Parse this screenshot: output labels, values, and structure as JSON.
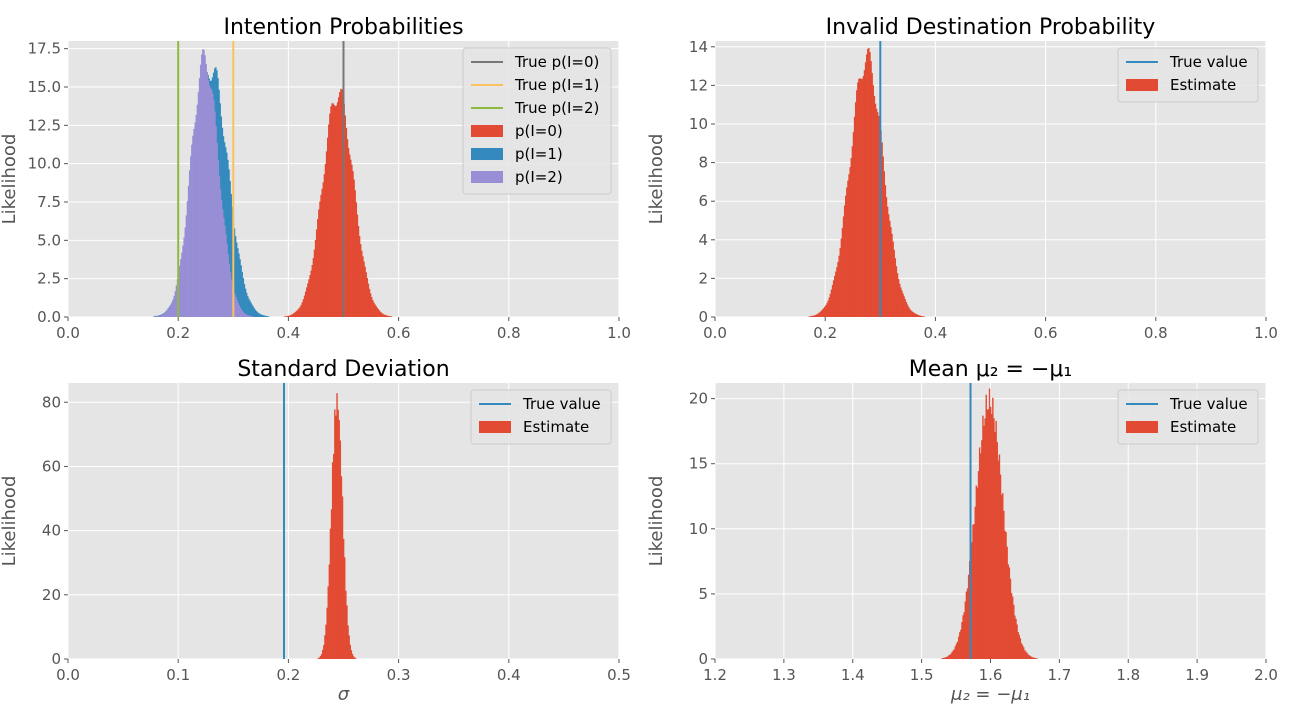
{
  "chart_data": [
    {
      "type": "histogram",
      "title": "Intention Probabilities",
      "xlabel": "",
      "ylabel": "Likelihood",
      "xlim": [
        0.0,
        1.0
      ],
      "ylim": [
        0.0,
        18.0
      ],
      "xticks": [
        "0.0",
        "0.2",
        "0.4",
        "0.6",
        "0.8",
        "1.0"
      ],
      "yticks": [
        "0.0",
        "2.5",
        "5.0",
        "7.5",
        "10.0",
        "12.5",
        "15.0",
        "17.5"
      ],
      "grid": true,
      "legend_position": "top-right",
      "reference_lines": [
        {
          "name": "True p(I=0)",
          "x": 0.5,
          "color": "#777777"
        },
        {
          "name": "True p(I=1)",
          "x": 0.3,
          "color": "#FBC15E"
        },
        {
          "name": "True p(I=2)",
          "x": 0.2,
          "color": "#8EBA42"
        }
      ],
      "series": [
        {
          "name": "p(I=0)",
          "color": "#E24A33",
          "mean": 0.49,
          "std": 0.028,
          "peak": 14.6
        },
        {
          "name": "p(I=1)",
          "color": "#348ABD",
          "mean": 0.26,
          "std": 0.03,
          "peak": 16.2
        },
        {
          "name": "p(I=2)",
          "color": "#988ED5",
          "mean": 0.248,
          "std": 0.025,
          "peak": 16.8
        }
      ]
    },
    {
      "type": "histogram",
      "title": "Invalid Destination Probability",
      "xlabel": "",
      "ylabel": "Likelihood",
      "xlim": [
        0.0,
        1.0
      ],
      "ylim": [
        0.0,
        14.3
      ],
      "xticks": [
        "0.0",
        "0.2",
        "0.4",
        "0.6",
        "0.8",
        "1.0"
      ],
      "yticks": [
        "0",
        "2",
        "4",
        "6",
        "8",
        "10",
        "12",
        "14"
      ],
      "grid": true,
      "legend_position": "top-right",
      "reference_lines": [
        {
          "name": "True value",
          "x": 0.3,
          "color": "#348ABD"
        }
      ],
      "series": [
        {
          "name": "Estimate",
          "color": "#E24A33",
          "mean": 0.275,
          "std": 0.03,
          "peak": 13.4
        }
      ]
    },
    {
      "type": "histogram",
      "title": "Standard Deviation",
      "xlabel": "σ",
      "ylabel": "Likelihood",
      "xlim": [
        0.0,
        0.5
      ],
      "ylim": [
        0.0,
        86.0
      ],
      "xticks": [
        "0.0",
        "0.1",
        "0.2",
        "0.3",
        "0.4",
        "0.5"
      ],
      "yticks": [
        "0",
        "20",
        "40",
        "60",
        "80"
      ],
      "grid": true,
      "legend_position": "top-right",
      "reference_lines": [
        {
          "name": "True value",
          "x": 0.196,
          "color": "#348ABD"
        }
      ],
      "series": [
        {
          "name": "Estimate",
          "color": "#E24A33",
          "mean": 0.244,
          "std": 0.005,
          "peak": 80.5
        }
      ]
    },
    {
      "type": "histogram",
      "title": "Mean μ₂ = −μ₁",
      "xlabel": "μ₂ = −μ₁",
      "ylabel": "Likelihood",
      "xlim": [
        1.2,
        2.0
      ],
      "ylim": [
        0.0,
        21.2
      ],
      "xticks": [
        "1.2",
        "1.3",
        "1.4",
        "1.5",
        "1.6",
        "1.7",
        "1.8",
        "1.9",
        "2.0"
      ],
      "yticks": [
        "0",
        "5",
        "10",
        "15",
        "20"
      ],
      "grid": true,
      "legend_position": "top-right",
      "reference_lines": [
        {
          "name": "True value",
          "x": 1.571,
          "color": "#348ABD"
        }
      ],
      "series": [
        {
          "name": "Estimate",
          "color": "#E24A33",
          "mean": 1.598,
          "std": 0.02,
          "peak": 19.8
        }
      ]
    }
  ]
}
